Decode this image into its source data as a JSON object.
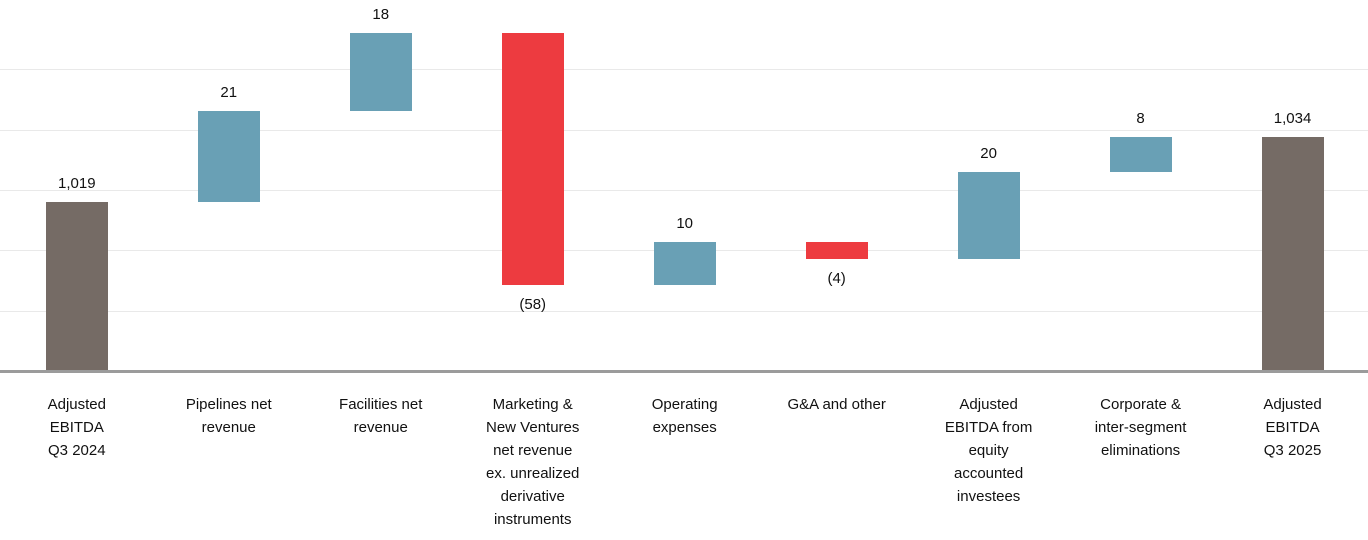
{
  "chart_data": {
    "type": "bar",
    "subtype": "waterfall",
    "title": "",
    "xlabel": "",
    "ylabel": "",
    "legend": false,
    "grid": true,
    "items": [
      {
        "label": "Adjusted\nEBITDA\nQ3 2024",
        "display": "1,019",
        "amount": 1019,
        "kind": "total"
      },
      {
        "label": "Pipelines net\nrevenue",
        "display": "21",
        "amount": 21,
        "kind": "increase"
      },
      {
        "label": "Facilities net\nrevenue",
        "display": "18",
        "amount": 18,
        "kind": "increase"
      },
      {
        "label": "Marketing &\nNew Ventures\nnet revenue\nex. unrealized\nderivative\ninstruments",
        "display": "(58)",
        "amount": -58,
        "kind": "decrease"
      },
      {
        "label": "Operating\nexpenses",
        "display": "10",
        "amount": 10,
        "kind": "increase"
      },
      {
        "label": "G&A and other",
        "display": "(4)",
        "amount": -4,
        "kind": "decrease"
      },
      {
        "label": "Adjusted\nEBITDA from\nequity\naccounted\ninvestees",
        "display": "20",
        "amount": 20,
        "kind": "increase"
      },
      {
        "label": "Corporate &\ninter-segment\neliminations",
        "display": "8",
        "amount": 8,
        "kind": "increase"
      },
      {
        "label": "Adjusted\nEBITDA\nQ3 2025",
        "display": "1,034",
        "amount": 1034,
        "kind": "total"
      }
    ],
    "cumulative_check": [
      1019,
      1040,
      1058,
      1000,
      1010,
      1006,
      1026,
      1034,
      1034
    ],
    "colors": {
      "total": "#756b65",
      "increase": "#69a0b5",
      "decrease": "#ed3b40",
      "gridline": "#e9e9e9",
      "axis_line": "#9b9b9b",
      "text": "#111111"
    },
    "axis": {
      "baseline_value": 980.4,
      "y_axis_labels_visible": false,
      "x_axis_line_visible": true,
      "gridlines_visible": true
    }
  }
}
